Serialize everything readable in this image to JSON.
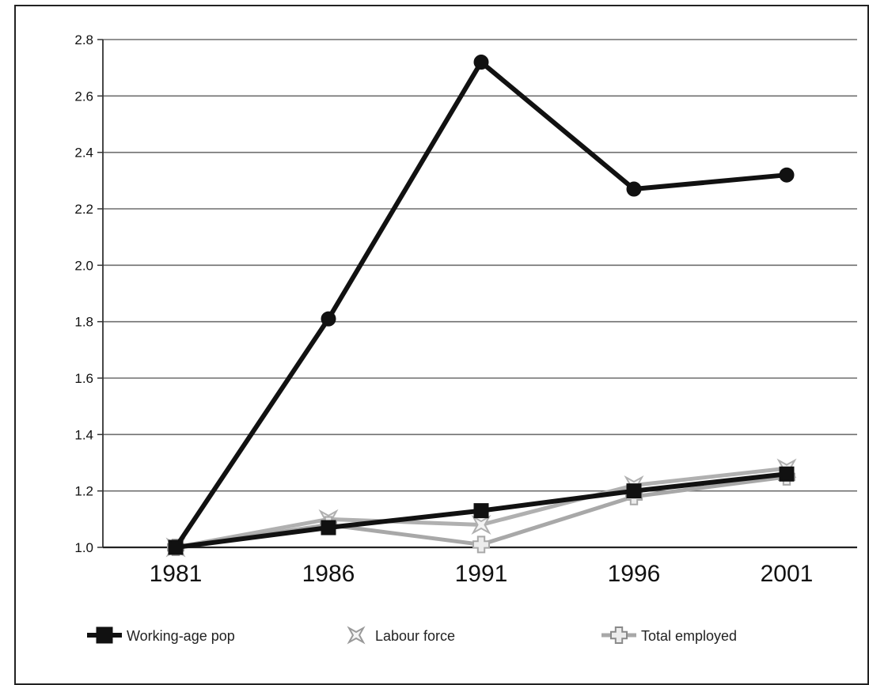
{
  "chart_data": {
    "type": "line",
    "categories": [
      "1981",
      "1986",
      "1991",
      "1996",
      "2001"
    ],
    "ylim": [
      1.0,
      2.8
    ],
    "yticks": [
      "1.0",
      "1.2",
      "1.4",
      "1.6",
      "1.8",
      "2.0",
      "2.2",
      "2.4",
      "2.6",
      "2.8"
    ],
    "grid": true,
    "legend_position": "bottom",
    "series": [
      {
        "name": "",
        "values": [
          1.0,
          1.81,
          2.72,
          2.27,
          2.32
        ],
        "color": "#111111",
        "marker": "circle"
      },
      {
        "name": "Working-age pop",
        "values": [
          1.0,
          1.07,
          1.13,
          1.2,
          1.26
        ],
        "color": "#111111",
        "marker": "square"
      },
      {
        "name": "Labour force",
        "values": [
          1.0,
          1.1,
          1.08,
          1.22,
          1.28
        ],
        "color": "#b0b0b0",
        "marker": "star"
      },
      {
        "name": "Total employed",
        "values": [
          1.0,
          1.08,
          1.01,
          1.18,
          1.25
        ],
        "color": "#a8a8a8",
        "marker": "plus"
      }
    ]
  }
}
